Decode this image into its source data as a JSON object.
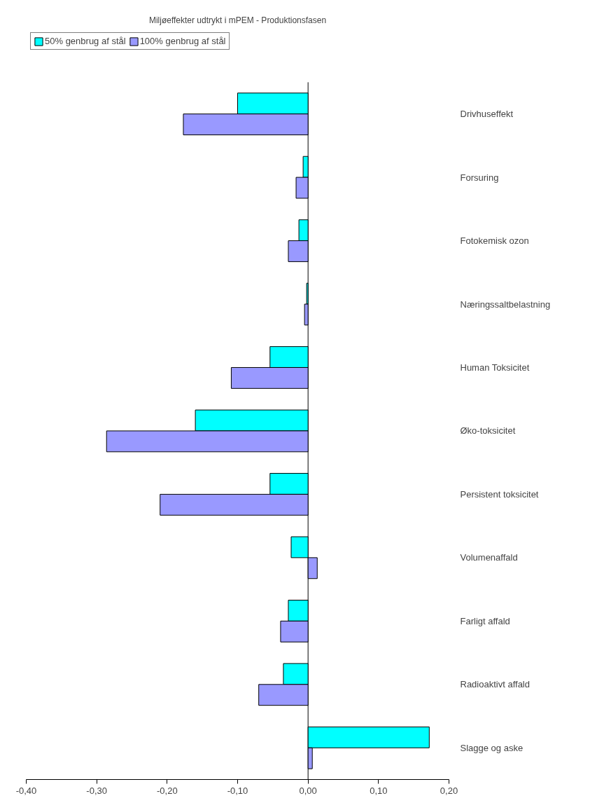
{
  "chart_data": {
    "type": "bar",
    "orientation": "horizontal",
    "title": "Miljøeffekter udtrykt i mPEM - Produktionsfasen",
    "categories": [
      "Drivhuseffekt",
      "Forsuring",
      "Fotokemisk ozon",
      "Næringssaltbelastning",
      "Human Toksicitet",
      "Øko-toksicitet",
      "Persistent toksicitet",
      "Volumenaffald",
      "Farligt affald",
      "Radioaktivt affald",
      "Slagge og aske"
    ],
    "series": [
      {
        "name": "50% genbrug af stål",
        "color": "#00ffff",
        "values": [
          -0.1,
          -0.007,
          -0.013,
          -0.002,
          -0.054,
          -0.16,
          -0.054,
          -0.024,
          -0.028,
          -0.035,
          0.172
        ]
      },
      {
        "name": "100% genbrug af stål",
        "color": "#9999ff",
        "values": [
          -0.177,
          -0.017,
          -0.028,
          -0.005,
          -0.109,
          -0.286,
          -0.21,
          0.013,
          -0.039,
          -0.07,
          0.006
        ]
      }
    ],
    "xlim": [
      -0.4,
      0.2
    ],
    "xticks": [
      {
        "value": -0.4,
        "label": "-0,40"
      },
      {
        "value": -0.3,
        "label": "-0,30"
      },
      {
        "value": -0.2,
        "label": "-0,20"
      },
      {
        "value": -0.1,
        "label": "-0,10"
      },
      {
        "value": 0,
        "label": "0,00"
      },
      {
        "value": 0.1,
        "label": "0,10"
      },
      {
        "value": 0.2,
        "label": "0,20"
      }
    ],
    "legend": "top"
  }
}
